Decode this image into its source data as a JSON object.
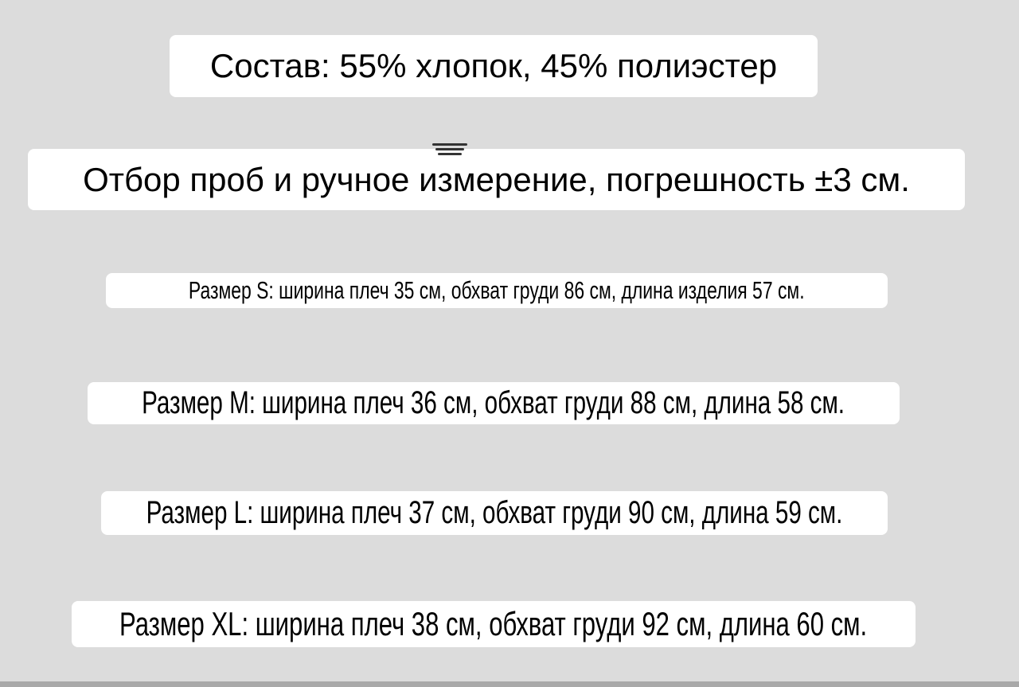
{
  "composition": "Состав: 55% хлопок, 45% полиэстер",
  "note": "Отбор проб и ручное измерение, погрешность ±3 см.",
  "sizes": [
    "Размер S: ширина плеч 35 см, обхват груди 86 см, длина изделия 57 см.",
    "Размер M: ширина плеч 36 см, обхват груди 88 см, длина 58 см.",
    "Размер L: ширина плеч 37 см, обхват груди 90 см, длина 59 см.",
    "Размер XL: ширина плеч 38 см, обхват груди 92 см, длина 60 см."
  ],
  "icons": {
    "menu": "menu-lines-icon"
  },
  "colors": {
    "background": "#dcdcdc",
    "label": "#ffffff",
    "text": "#000000"
  }
}
